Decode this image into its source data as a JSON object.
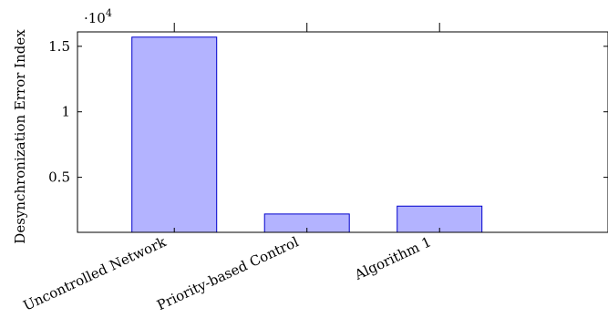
{
  "chart_data": {
    "type": "bar",
    "categories": [
      "Uncontrolled Network",
      "Priority-based Control",
      "Algorithm 1"
    ],
    "values": [
      15700,
      2200,
      2800
    ],
    "title": "",
    "xlabel": "",
    "ylabel": "Desynchronization Error Index",
    "ylim": [
      800,
      16100
    ],
    "yticks": [
      5000,
      10000,
      15000
    ],
    "ytick_labels": [
      "0.5",
      "1",
      "1.5"
    ],
    "scale_multiplier": {
      "base": "·10",
      "exponent": "4"
    },
    "grid": false,
    "colors": {
      "bar_fill": "#b3b3ff",
      "bar_stroke": "#0000cc"
    }
  }
}
